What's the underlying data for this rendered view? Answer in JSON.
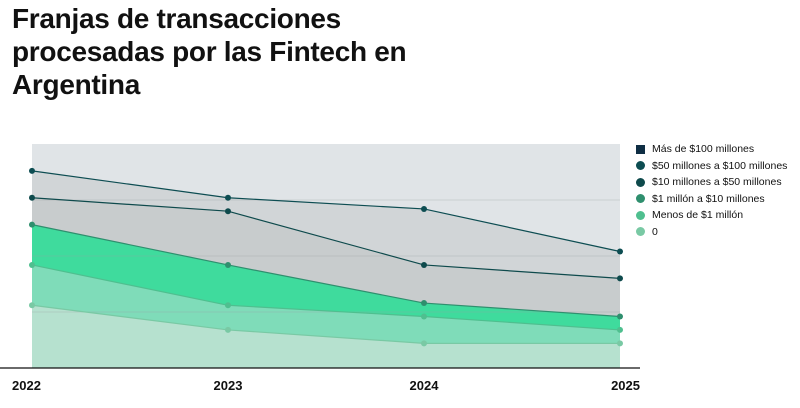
{
  "chart_data": {
    "type": "area",
    "title": "Franjas de transacciones procesadas por las Fintech en Argentina",
    "xlabel": "",
    "ylabel": "",
    "x": [
      "2022",
      "2023",
      "2024",
      "2025"
    ],
    "ylim": [
      0,
      100
    ],
    "grid": true,
    "legend_position": "right",
    "series": [
      {
        "name": "Más de $100 millones",
        "values": [
          100,
          100,
          100,
          100
        ],
        "color": "#0f2e44",
        "fill": "#e0e4e7",
        "marker": "square"
      },
      {
        "name": "$50 millones a $100 millones",
        "values": [
          88,
          76,
          71,
          52
        ],
        "color": "#0d4d52",
        "fill": "#d1d5d7",
        "marker": "circle"
      },
      {
        "name": "$10 millones a $50 millones",
        "values": [
          76,
          70,
          46,
          40
        ],
        "color": "#0e4a4c",
        "fill": "#c8cccd",
        "marker": "circle"
      },
      {
        "name": "$1 millón a $10 millones",
        "values": [
          64,
          46,
          29,
          23
        ],
        "color": "#2f8f6e",
        "fill": "#3fdb9d",
        "marker": "circle"
      },
      {
        "name": "Menos de $1 millón",
        "values": [
          46,
          28,
          23,
          17
        ],
        "color": "#4fbf8f",
        "fill": "#7fdcb9",
        "marker": "circle"
      },
      {
        "name": "0",
        "values": [
          28,
          17,
          11,
          11
        ],
        "color": "#79c9a4",
        "fill": "#b6e1cf",
        "marker": "circle"
      }
    ]
  }
}
